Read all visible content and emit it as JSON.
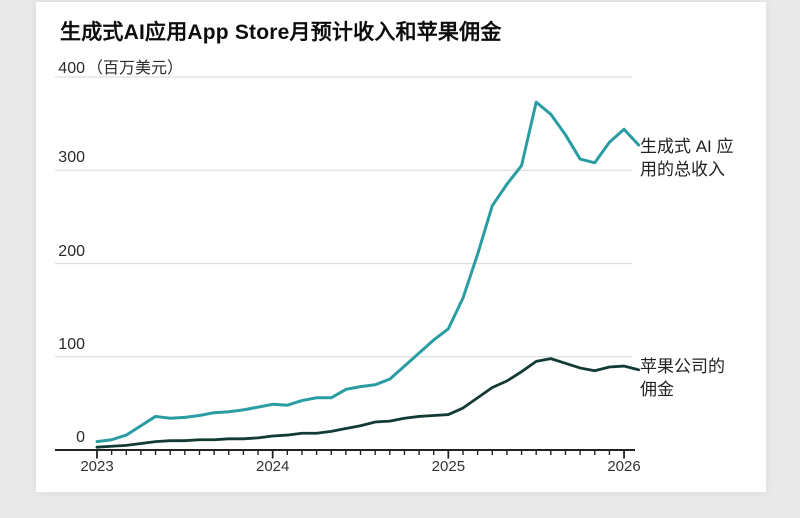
{
  "header": {
    "title": "生成式AI应用App Store月预计收入和苹果佣金"
  },
  "annotations": {
    "revenue_line1": "生成式 AI 应",
    "revenue_line2": "用的总收入",
    "commission_line1": "苹果公司的",
    "commission_line2": "佣金"
  },
  "chart_data": {
    "type": "line",
    "title": "生成式AI应用App Store月预计收入和苹果佣金",
    "ylabel_top": "400",
    "unit_label": "（百万美元）",
    "ylim": [
      0,
      400
    ],
    "grid": "horizontal",
    "legend_position": "right-annotations",
    "x_start": "2023-01",
    "x_end": "2026-02",
    "y_axis": [
      {
        "label": "300",
        "value": 300
      },
      {
        "label": "200",
        "value": 200
      },
      {
        "label": "100",
        "value": 100
      },
      {
        "label": "0",
        "value": 0
      }
    ],
    "y_gridline_values": [
      400,
      300,
      200,
      100
    ],
    "x_years": [
      {
        "label": "2023",
        "month_index": 0
      },
      {
        "label": "2024",
        "month_index": 12
      },
      {
        "label": "2025",
        "month_index": 24
      },
      {
        "label": "2026",
        "month_index": 36
      }
    ],
    "colors": {
      "revenue": "#2a9da3",
      "commission": "#123b35",
      "grid": "#dedede",
      "axis": "#222222"
    },
    "series": [
      {
        "name": "生成式 AI 应用的总收入",
        "color": "#2a9da3",
        "values": [
          9,
          11,
          16,
          26,
          36,
          34,
          35,
          37,
          40,
          41,
          43,
          46,
          49,
          48,
          53,
          56,
          56,
          65,
          68,
          70,
          76,
          90,
          104,
          118,
          130,
          163,
          210,
          262,
          285,
          305,
          373,
          360,
          338,
          312,
          308,
          330,
          344,
          327
        ]
      },
      {
        "name": "苹果公司的佣金",
        "color": "#123b35",
        "values": [
          3,
          4,
          5,
          7,
          9,
          10,
          10,
          11,
          11,
          12,
          12,
          13,
          15,
          16,
          18,
          18,
          20,
          23,
          26,
          30,
          31,
          34,
          36,
          37,
          38,
          45,
          56,
          67,
          74,
          84,
          95,
          98,
          93,
          88,
          85,
          89,
          90,
          86
        ]
      }
    ]
  }
}
